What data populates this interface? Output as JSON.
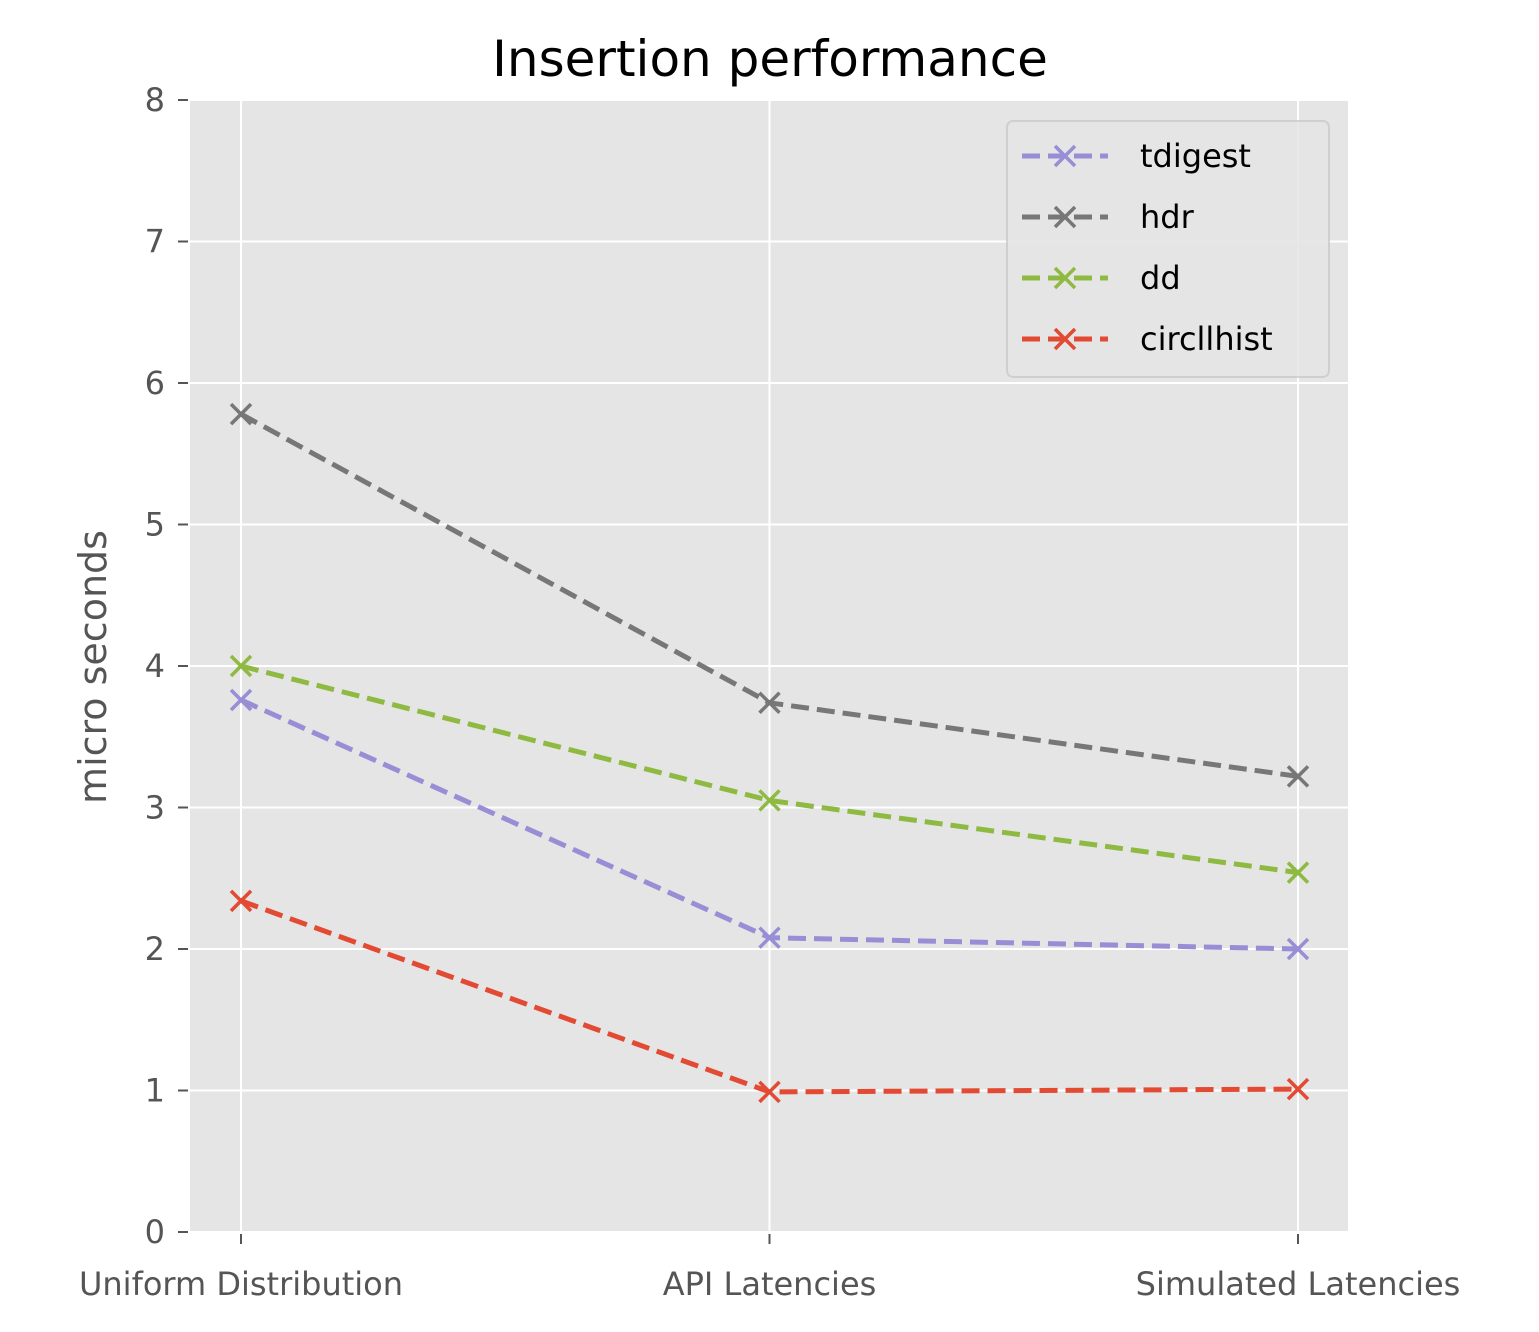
{
  "chart_data": {
    "type": "line",
    "title": "Insertion performance",
    "xlabel": "",
    "ylabel": "micro seconds",
    "categories": [
      "Uniform Distribution",
      "API Latencies",
      "Simulated Latencies"
    ],
    "ylim": [
      0,
      8
    ],
    "yticks": [
      "0",
      "1",
      "2",
      "3",
      "4",
      "5",
      "6",
      "7",
      "8"
    ],
    "grid": true,
    "legend_position": "top-right",
    "marker": "x",
    "line_style": "dashed",
    "series": [
      {
        "name": "tdigest",
        "color": "#988ED5",
        "values": [
          3.76,
          2.08,
          2.0
        ]
      },
      {
        "name": "hdr",
        "color": "#777777",
        "values": [
          5.78,
          3.74,
          3.22
        ]
      },
      {
        "name": "dd",
        "color": "#8EBA42",
        "values": [
          4.0,
          3.05,
          2.54
        ]
      },
      {
        "name": "circllhist",
        "color": "#E24A33",
        "values": [
          2.34,
          0.99,
          1.01
        ]
      }
    ],
    "colors": {
      "plot_background": "#E5E5E5",
      "grid": "#FFFFFF"
    }
  }
}
